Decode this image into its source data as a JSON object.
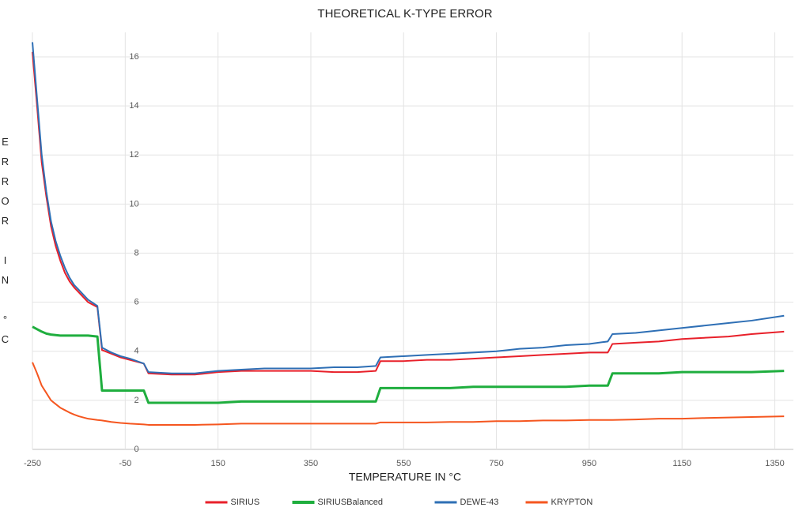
{
  "chart_data": {
    "type": "line",
    "title": "THEORETICAL K-TYPE ERROR",
    "x_label": "TEMPERATURE IN °C",
    "y_label": "ERROR IN °C",
    "x": [
      -250,
      -240,
      -230,
      -220,
      -210,
      -200,
      -190,
      -180,
      -170,
      -160,
      -150,
      -130,
      -110,
      -100,
      -80,
      -60,
      -40,
      -10,
      0,
      50,
      100,
      150,
      200,
      250,
      300,
      350,
      400,
      450,
      490,
      500,
      550,
      600,
      650,
      700,
      750,
      800,
      850,
      900,
      950,
      990,
      1000,
      1050,
      1100,
      1150,
      1200,
      1250,
      1300,
      1370
    ],
    "series": [
      {
        "name": "SIRIUS",
        "color": "#e8202a",
        "width": 2,
        "values": [
          16.2,
          14.0,
          11.7,
          10.3,
          9.1,
          8.3,
          7.7,
          7.2,
          6.85,
          6.6,
          6.4,
          6.0,
          5.8,
          4.05,
          3.9,
          3.75,
          3.65,
          3.5,
          3.1,
          3.05,
          3.05,
          3.15,
          3.2,
          3.2,
          3.2,
          3.2,
          3.15,
          3.15,
          3.2,
          3.6,
          3.6,
          3.65,
          3.65,
          3.7,
          3.75,
          3.8,
          3.85,
          3.9,
          3.95,
          3.95,
          4.3,
          4.35,
          4.4,
          4.5,
          4.55,
          4.6,
          4.7,
          4.8
        ]
      },
      {
        "name": "SIRIUSBalanced",
        "color": "#1fae3e",
        "width": 3,
        "values": [
          5.0,
          4.9,
          4.8,
          4.72,
          4.68,
          4.66,
          4.64,
          4.64,
          4.64,
          4.64,
          4.64,
          4.64,
          4.6,
          2.4,
          2.4,
          2.4,
          2.4,
          2.4,
          1.9,
          1.9,
          1.9,
          1.9,
          1.95,
          1.95,
          1.95,
          1.95,
          1.95,
          1.95,
          1.95,
          2.5,
          2.5,
          2.5,
          2.5,
          2.55,
          2.55,
          2.55,
          2.55,
          2.55,
          2.6,
          2.6,
          3.1,
          3.1,
          3.1,
          3.15,
          3.15,
          3.15,
          3.15,
          3.2
        ]
      },
      {
        "name": "DEWE-43",
        "color": "#2e6fb5",
        "width": 2,
        "values": [
          16.6,
          14.3,
          12.0,
          10.5,
          9.3,
          8.5,
          7.9,
          7.4,
          7.0,
          6.7,
          6.5,
          6.1,
          5.85,
          4.15,
          3.95,
          3.8,
          3.7,
          3.5,
          3.15,
          3.1,
          3.1,
          3.2,
          3.25,
          3.3,
          3.3,
          3.3,
          3.35,
          3.35,
          3.4,
          3.75,
          3.8,
          3.85,
          3.9,
          3.95,
          4.0,
          4.1,
          4.15,
          4.25,
          4.3,
          4.4,
          4.7,
          4.75,
          4.85,
          4.95,
          5.05,
          5.15,
          5.25,
          5.45
        ]
      },
      {
        "name": "KRYPTON",
        "color": "#f5561f",
        "width": 2,
        "values": [
          3.55,
          3.1,
          2.6,
          2.3,
          2.0,
          1.85,
          1.7,
          1.6,
          1.5,
          1.42,
          1.35,
          1.25,
          1.2,
          1.18,
          1.12,
          1.08,
          1.05,
          1.02,
          1.0,
          1.0,
          1.0,
          1.02,
          1.05,
          1.05,
          1.05,
          1.05,
          1.05,
          1.05,
          1.05,
          1.1,
          1.1,
          1.1,
          1.12,
          1.12,
          1.15,
          1.15,
          1.18,
          1.18,
          1.2,
          1.2,
          1.2,
          1.22,
          1.25,
          1.25,
          1.28,
          1.3,
          1.32,
          1.35
        ]
      }
    ],
    "xlim": [
      -250,
      1390
    ],
    "ylim": [
      0,
      17
    ],
    "xticks": [
      -250,
      -50,
      150,
      350,
      550,
      750,
      950,
      1150,
      1350
    ],
    "yticks": [
      0,
      2,
      4,
      6,
      8,
      10,
      12,
      14,
      16
    ],
    "grid": true,
    "legend": "bottom"
  }
}
